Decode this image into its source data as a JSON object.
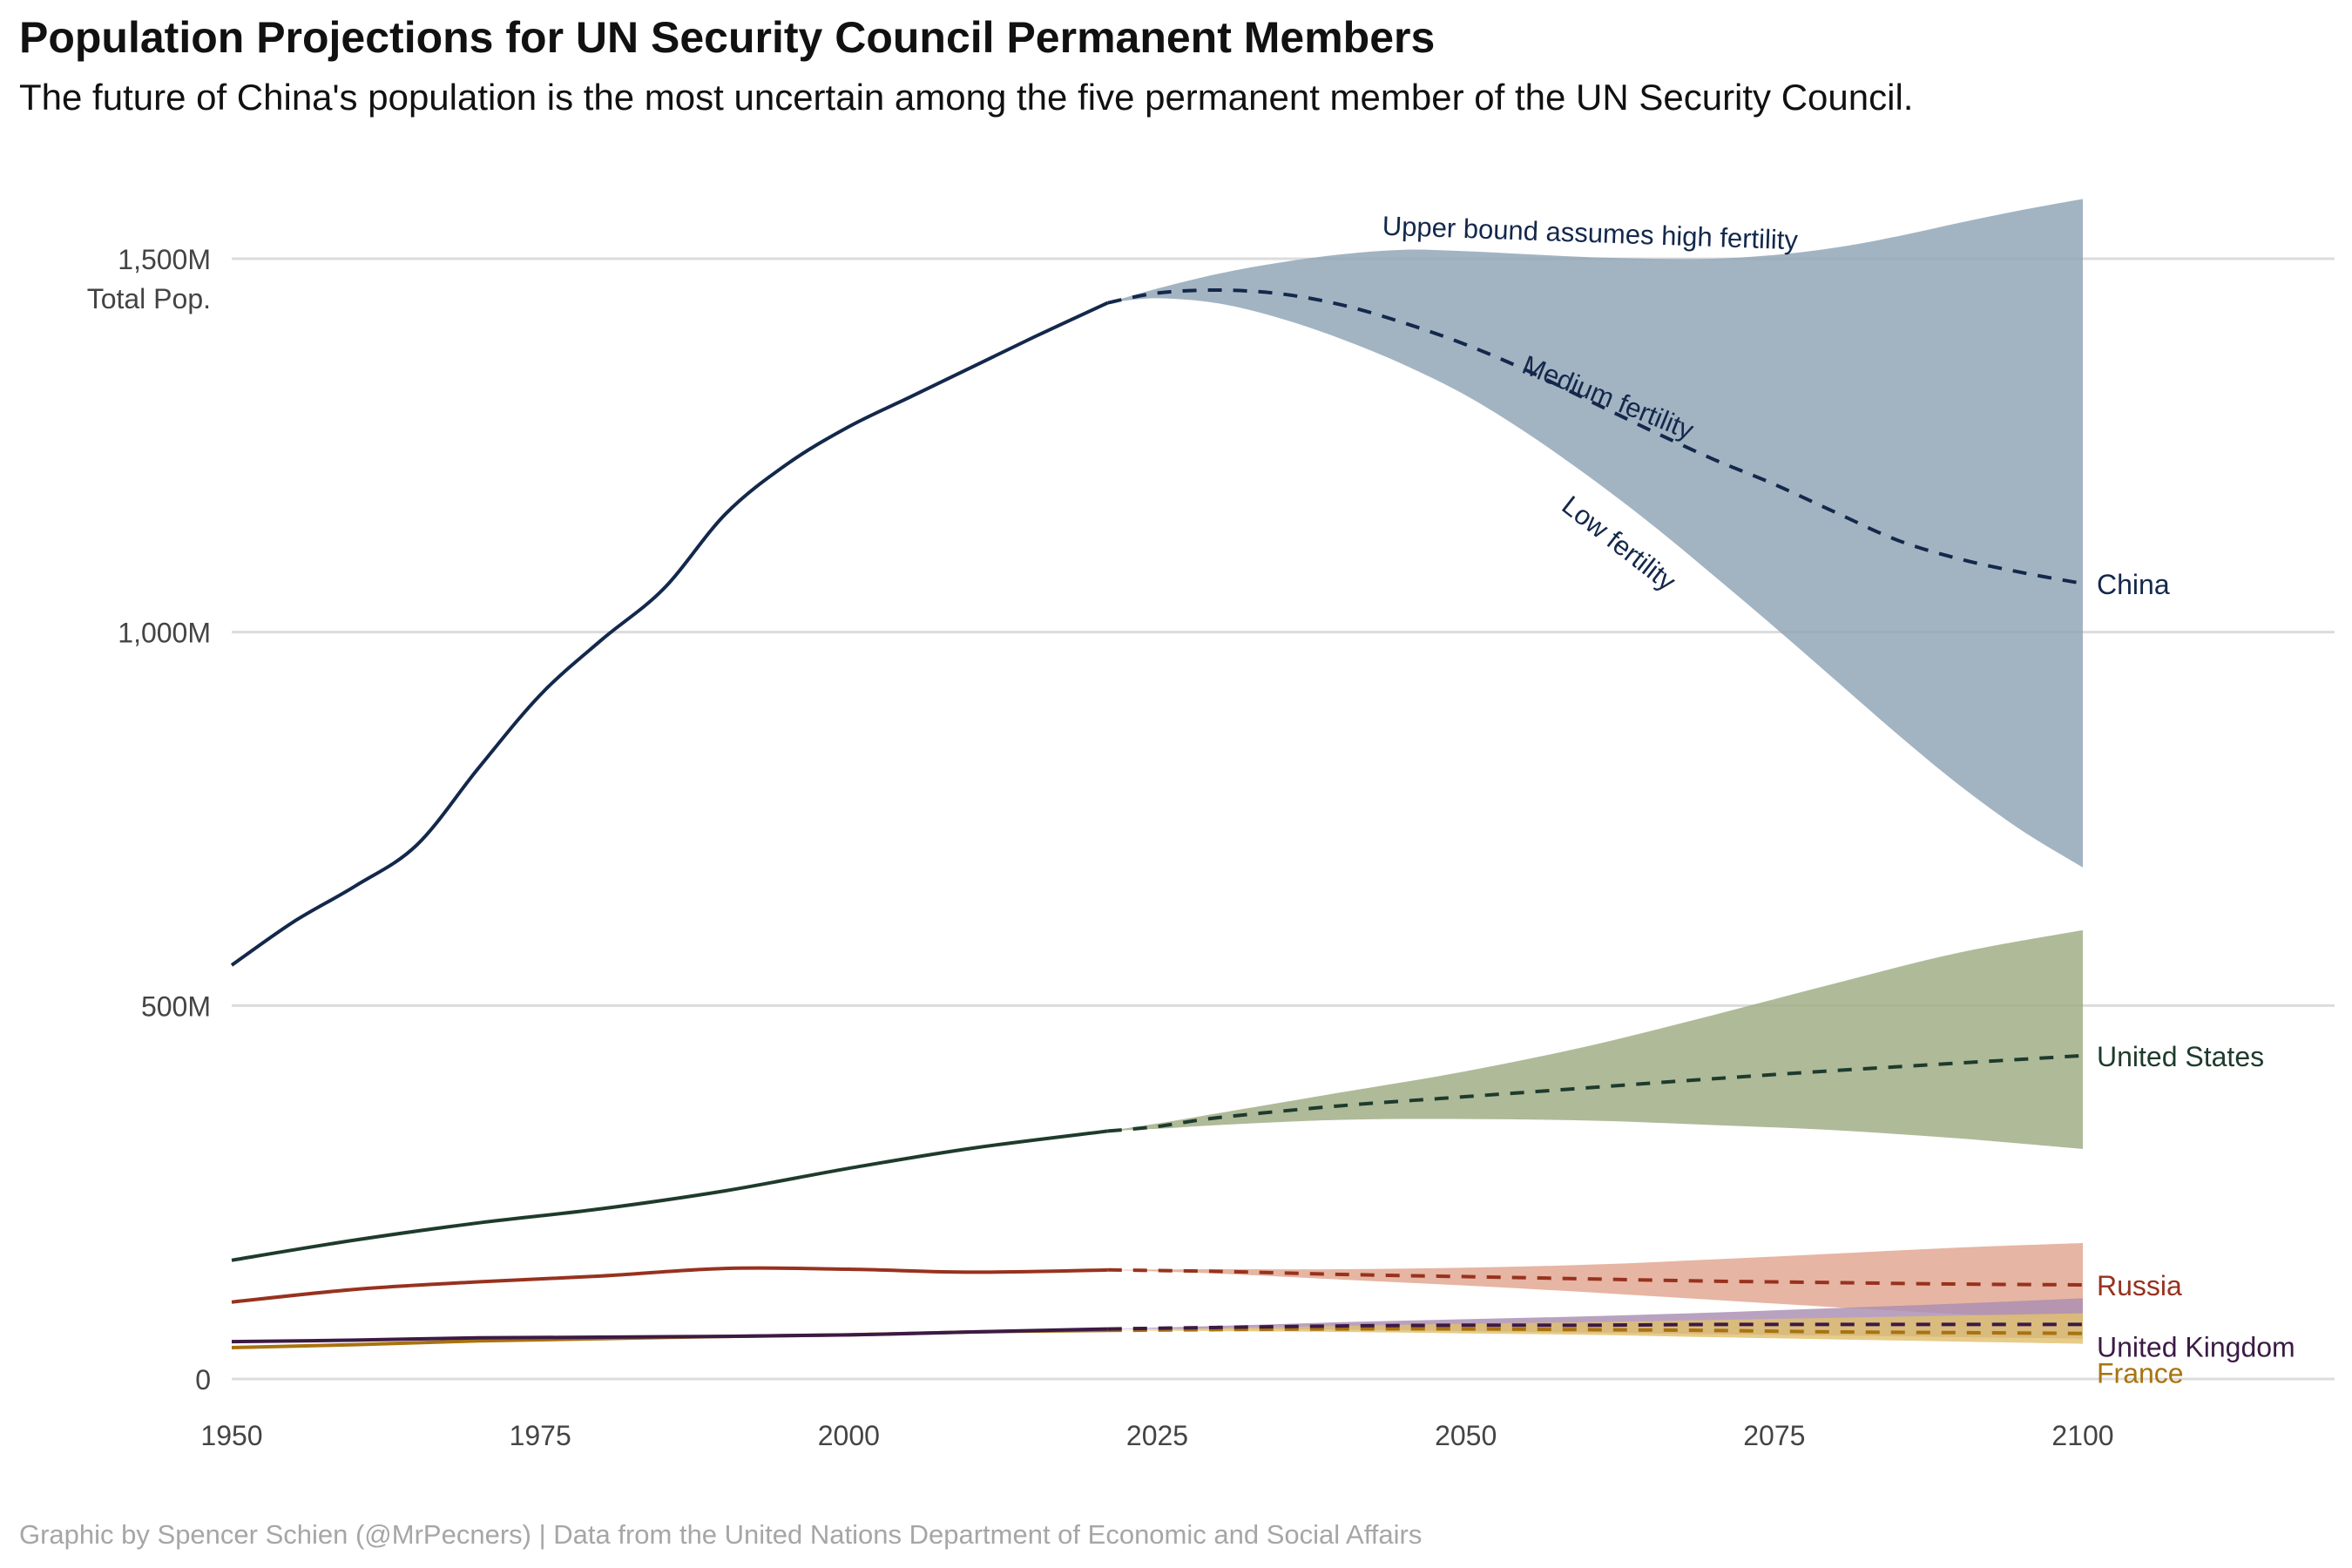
{
  "title": "Population Projections for UN Security Council Permanent Members",
  "subtitle": "The future of China's population is the most uncertain among the five permanent member of the UN Security Council.",
  "caption": "Graphic by Spencer Schien (@MrPecners) | Data from the United Nations Department of Economic and Social Affairs",
  "chart_data": {
    "type": "line",
    "ylabel": "Total Pop.",
    "xlim": [
      1950,
      2122
    ],
    "ylim": [
      0,
      1600
    ],
    "x_ticks": [
      1950,
      1975,
      2000,
      2025,
      2050,
      2075,
      2100
    ],
    "x_tick_labels": [
      "1950",
      "1975",
      "2000",
      "2025",
      "2050",
      "2075",
      "2100"
    ],
    "y_ticks": [
      0,
      500,
      1000,
      1500
    ],
    "y_tick_labels": [
      "0",
      "500M",
      "1,000M",
      "1,500M"
    ],
    "grid": "horizontal",
    "legend": "none (direct labels at line ends)",
    "projection_start_year": 2021,
    "annotations": [
      {
        "text": "Upper bound assumes high fertility",
        "series": "China"
      },
      {
        "text": "Medium fertility",
        "series": "China"
      },
      {
        "text": "Low fertility",
        "series": "China"
      }
    ],
    "series": [
      {
        "name": "China",
        "color": "#13284b",
        "band_color": "#8ea3b5",
        "historical": {
          "x": [
            1950,
            1955,
            1960,
            1965,
            1970,
            1975,
            1980,
            1985,
            1990,
            1995,
            2000,
            2005,
            2010,
            2015,
            2021
          ],
          "y": [
            554,
            612,
            660,
            715,
            818,
            916,
            990,
            1058,
            1158,
            1225,
            1275,
            1315,
            1355,
            1395,
            1441
          ]
        },
        "projection": {
          "x": [
            2021,
            2025,
            2030,
            2035,
            2040,
            2045,
            2050,
            2055,
            2060,
            2065,
            2070,
            2075,
            2080,
            2085,
            2090,
            2095,
            2100
          ],
          "medium": [
            1441,
            1454,
            1458,
            1453,
            1438,
            1414,
            1385,
            1350,
            1310,
            1270,
            1232,
            1198,
            1160,
            1123,
            1098,
            1080,
            1065
          ],
          "low": [
            1441,
            1447,
            1440,
            1420,
            1392,
            1358,
            1317,
            1266,
            1208,
            1145,
            1077,
            1007,
            935,
            863,
            795,
            735,
            685
          ],
          "high": [
            1441,
            1460,
            1480,
            1495,
            1506,
            1512,
            1510,
            1506,
            1502,
            1500,
            1500,
            1505,
            1515,
            1530,
            1548,
            1565,
            1580
          ]
        }
      },
      {
        "name": "United States",
        "color": "#1e3b2c",
        "band_color": "#9eab82",
        "historical": {
          "x": [
            1950,
            1960,
            1970,
            1980,
            1990,
            2000,
            2010,
            2021
          ],
          "y": [
            159,
            186,
            209,
            228,
            252,
            282,
            309,
            332
          ]
        },
        "projection": {
          "x": [
            2021,
            2025,
            2030,
            2040,
            2050,
            2060,
            2070,
            2080,
            2090,
            2100
          ],
          "medium": [
            332,
            338,
            350,
            366,
            378,
            390,
            402,
            413,
            423,
            433
          ],
          "low": [
            332,
            335,
            340,
            347,
            348,
            346,
            340,
            333,
            322,
            308
          ],
          "high": [
            332,
            342,
            356,
            384,
            412,
            446,
            487,
            530,
            571,
            601
          ]
        }
      },
      {
        "name": "Russia",
        "color": "#97321e",
        "band_color": "#e2a58f",
        "historical": {
          "x": [
            1950,
            1960,
            1970,
            1980,
            1990,
            2000,
            2010,
            2021
          ],
          "y": [
            103,
            120,
            130,
            138,
            148,
            147,
            143,
            146
          ]
        },
        "projection": {
          "x": [
            2021,
            2030,
            2040,
            2050,
            2060,
            2070,
            2080,
            2090,
            2100
          ],
          "medium": [
            146,
            144,
            140,
            137,
            134,
            131,
            129,
            127,
            126
          ],
          "low": [
            146,
            141,
            133,
            125,
            116,
            106,
            96,
            87,
            79
          ],
          "high": [
            146,
            147,
            147,
            149,
            153,
            160,
            168,
            176,
            182
          ]
        }
      },
      {
        "name": "United Kingdom",
        "color": "#3c1a45",
        "band_color": "#a98db2",
        "historical": {
          "x": [
            1950,
            1960,
            1970,
            1980,
            1990,
            2000,
            2010,
            2021
          ],
          "y": [
            50,
            52,
            55,
            56,
            57,
            59,
            63,
            67
          ]
        },
        "projection": {
          "x": [
            2021,
            2030,
            2040,
            2050,
            2060,
            2070,
            2080,
            2090,
            2100
          ],
          "medium": [
            67,
            69,
            71,
            72,
            72,
            73,
            73,
            73,
            73
          ],
          "low": [
            67,
            67,
            66,
            64,
            62,
            60,
            58,
            56,
            54
          ],
          "high": [
            67,
            71,
            76,
            80,
            84,
            89,
            95,
            101,
            108
          ]
        }
      },
      {
        "name": "France",
        "color": "#a8730f",
        "band_color": "#e2c16f",
        "historical": {
          "x": [
            1950,
            1960,
            1970,
            1980,
            1990,
            2000,
            2010,
            2021
          ],
          "y": [
            42,
            46,
            51,
            54,
            57,
            59,
            63,
            65
          ]
        },
        "projection": {
          "x": [
            2021,
            2030,
            2040,
            2050,
            2060,
            2070,
            2080,
            2090,
            2100
          ],
          "medium": [
            65,
            66,
            67,
            67,
            66,
            65,
            63,
            62,
            61
          ],
          "low": [
            65,
            64,
            63,
            61,
            59,
            56,
            53,
            50,
            47
          ],
          "high": [
            65,
            68,
            71,
            74,
            76,
            79,
            82,
            85,
            88
          ]
        }
      }
    ]
  }
}
